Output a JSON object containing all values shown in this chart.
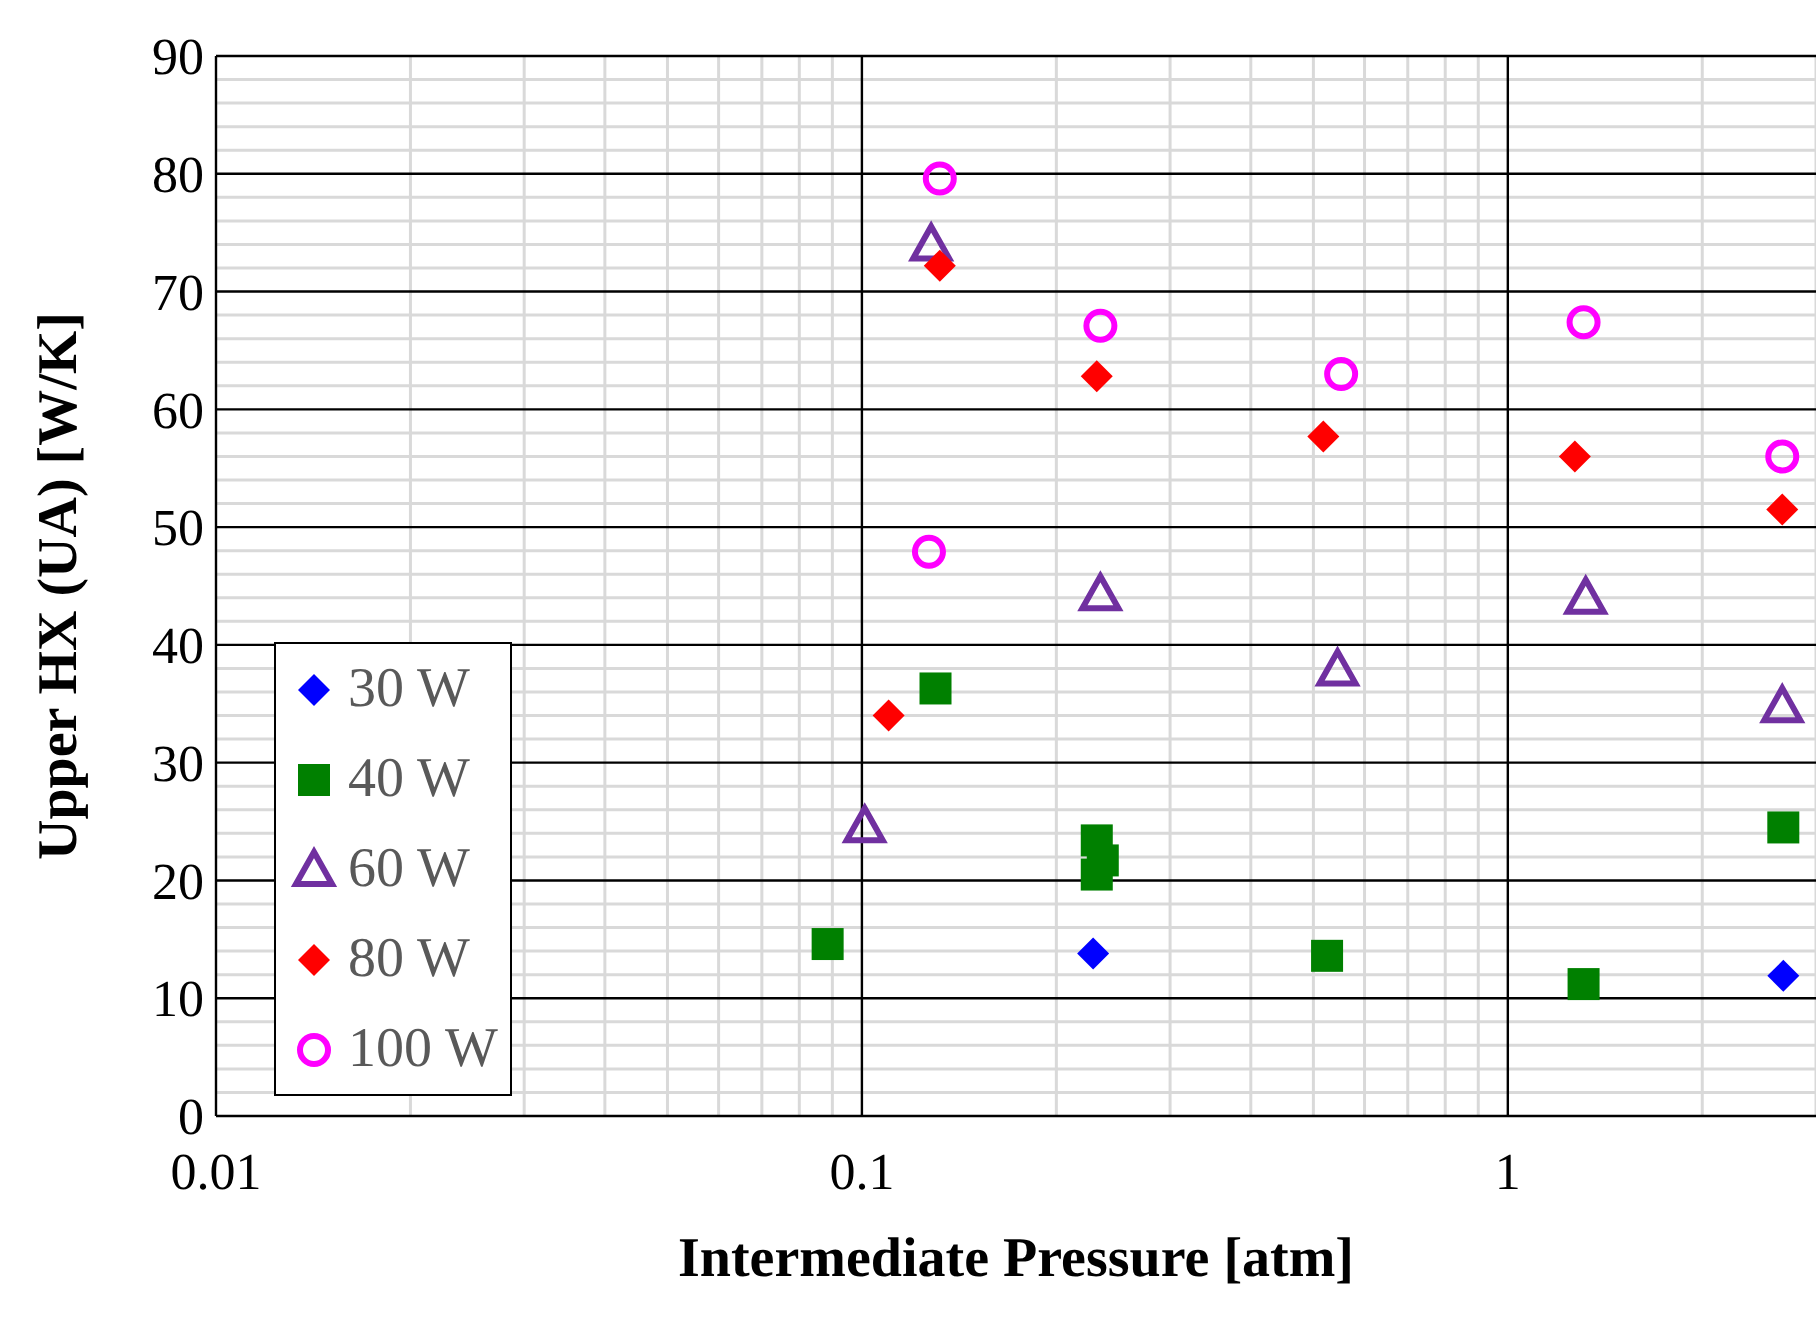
{
  "chart_data": {
    "type": "scatter",
    "xlabel": "Intermediate Pressure [atm]",
    "ylabel": "Upper HX (UA) [W/K]",
    "log": "x",
    "grid": true,
    "legend": "bottom left",
    "xlim": [
      0.01,
      3
    ],
    "ylim": [
      0,
      90
    ],
    "xticks": [
      0.01,
      {
        "value": 0.02,
        "label": null
      },
      {
        "value": 0.03,
        "label": null
      },
      {
        "value": 0.04,
        "label": null
      },
      {
        "value": 0.05,
        "label": null
      },
      {
        "value": 0.06,
        "label": null
      },
      {
        "value": 0.07,
        "label": null
      },
      {
        "value": 0.08,
        "label": null
      },
      {
        "value": 0.09,
        "label": null
      },
      0.1,
      {
        "value": 0.2,
        "label": null
      },
      {
        "value": 0.3,
        "label": null
      },
      {
        "value": 0.4,
        "label": null
      },
      {
        "value": 0.5,
        "label": null
      },
      {
        "value": 0.6,
        "label": null
      },
      {
        "value": 0.7,
        "label": null
      },
      {
        "value": 0.8,
        "label": null
      },
      {
        "value": 0.9,
        "label": null
      },
      1,
      {
        "value": 2,
        "label": null
      },
      {
        "value": 3,
        "label": null
      }
    ],
    "yticks": [
      0,
      {
        "value": 2,
        "label": null
      },
      {
        "value": 4,
        "label": null
      },
      {
        "value": 6,
        "label": null
      },
      {
        "value": 8,
        "label": null
      },
      10,
      {
        "value": 12,
        "label": null
      },
      {
        "value": 14,
        "label": null
      },
      {
        "value": 16,
        "label": null
      },
      {
        "value": 18,
        "label": null
      },
      20,
      {
        "value": 22,
        "label": null
      },
      {
        "value": 24,
        "label": null
      },
      {
        "value": 26,
        "label": null
      },
      {
        "value": 28,
        "label": null
      },
      30,
      {
        "value": 32,
        "label": null
      },
      {
        "value": 34,
        "label": null
      },
      {
        "value": 36,
        "label": null
      },
      {
        "value": 38,
        "label": null
      },
      40,
      {
        "value": 42,
        "label": null
      },
      {
        "value": 44,
        "label": null
      },
      {
        "value": 46,
        "label": null
      },
      {
        "value": 48,
        "label": null
      },
      50,
      {
        "value": 52,
        "label": null
      },
      {
        "value": 54,
        "label": null
      },
      {
        "value": 56,
        "label": null
      },
      {
        "value": 58,
        "label": null
      },
      60,
      {
        "value": 62,
        "label": null
      },
      {
        "value": 64,
        "label": null
      },
      {
        "value": 66,
        "label": null
      },
      {
        "value": 68,
        "label": null
      },
      70,
      {
        "value": 72,
        "label": null
      },
      {
        "value": 74,
        "label": null
      },
      {
        "value": 76,
        "label": null
      },
      {
        "value": 78,
        "label": null
      },
      80,
      {
        "value": 82,
        "label": null
      },
      {
        "value": 84,
        "label": null
      },
      {
        "value": 86,
        "label": null
      },
      {
        "value": 88,
        "label": null
      },
      90
    ],
    "series": [
      {
        "name": "30 W",
        "color": "#0000ff",
        "marker": "diamond",
        "x": [
          0.228,
          2.67
        ],
        "values": [
          13.8,
          11.9
        ]
      },
      {
        "name": "40 W",
        "color": "#008000",
        "marker": "square",
        "x": [
          0.0885,
          0.13,
          0.231,
          0.236,
          0.231,
          0.525,
          1.31,
          2.67
        ],
        "values": [
          14.6,
          36.3,
          23.4,
          21.7,
          20.5,
          13.6,
          11.2,
          24.5
        ]
      },
      {
        "name": "60 W",
        "color": "#7030a0",
        "marker": "triangle",
        "x": [
          0.101,
          0.128,
          0.234,
          0.545,
          1.32,
          2.66
        ],
        "values": [
          24.6,
          74.0,
          44.3,
          37.9,
          44.0,
          34.8
        ]
      },
      {
        "name": "80 W",
        "color": "#ff0000",
        "marker": "diamond",
        "x": [
          0.11,
          0.132,
          0.231,
          0.518,
          1.27,
          2.66
        ],
        "values": [
          34.0,
          72.2,
          62.8,
          57.7,
          56.0,
          51.5
        ]
      },
      {
        "name": "100 W",
        "color": "#ff00ff",
        "marker": "circle",
        "x": [
          0.127,
          0.132,
          0.234,
          0.552,
          1.31,
          2.66
        ],
        "values": [
          47.9,
          79.6,
          67.1,
          63.0,
          67.4,
          56.0
        ]
      }
    ]
  }
}
